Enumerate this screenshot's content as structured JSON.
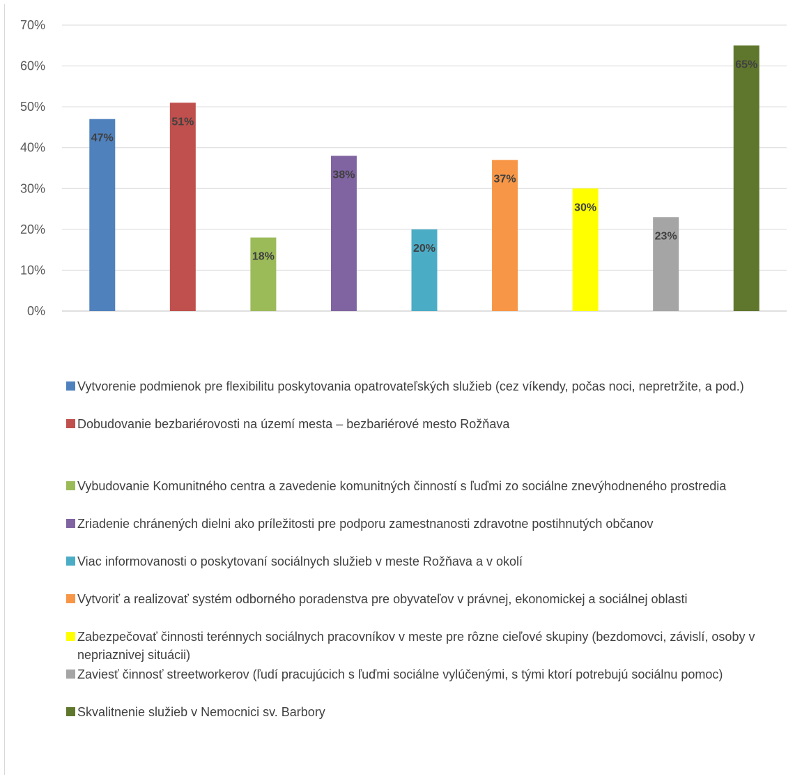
{
  "chart_data": {
    "type": "bar",
    "title": "",
    "xlabel": "",
    "ylabel": "",
    "ylim": [
      0,
      70
    ],
    "y_ticks": [
      "0%",
      "10%",
      "20%",
      "30%",
      "40%",
      "50%",
      "60%",
      "70%"
    ],
    "grid": true,
    "legend_position": "bottom",
    "value_unit": "%",
    "categories": [
      "Vytvorenie podmienok pre flexibilitu poskytovania opatrovateľských služieb (cez víkendy, počas noci, nepretržite, a pod.)",
      "Dobudovanie bezbariérovosti na území mesta – bezbariérové mesto Rožňava",
      "Vybudovanie Komunitného centra a zavedenie komunitných činností s ľuďmi zo sociálne znevýhodneného prostredia",
      "Zriadenie chránených dielni ako príležitosti pre podporu zamestnanosti zdravotne postihnutých občanov",
      "Viac informovanosti o poskytovaní sociálnych služieb v meste Rožňava a v okolí",
      "Vytvoriť a realizovať systém odborného poradenstva pre obyvateľov v právnej, ekonomickej a sociálnej oblasti",
      "Zabezpečovať činnosti terénnych sociálnych pracovníkov v meste pre rôzne cieľové skupiny (bezdomovci, závislí, osoby v nepriaznivej situácii)",
      "Zaviesť činnosť streetworkerov (ľudí pracujúcich s ľuďmi sociálne vylúčenými, s tými ktorí  potrebujú sociálnu pomoc)",
      "Skvalitnenie služieb v  Nemocnici sv. Barbory"
    ],
    "values": [
      47,
      51,
      18,
      38,
      20,
      37,
      30,
      23,
      65
    ],
    "data_labels": [
      "47%",
      "51%",
      "18%",
      "38%",
      "20%",
      "37%",
      "30%",
      "23%",
      "65%"
    ],
    "colors": [
      "#4f81bd",
      "#c0504d",
      "#9bbb59",
      "#8064a2",
      "#4bacc6",
      "#f79646",
      "#ffff00",
      "#a5a5a5",
      "#5f772d"
    ]
  }
}
